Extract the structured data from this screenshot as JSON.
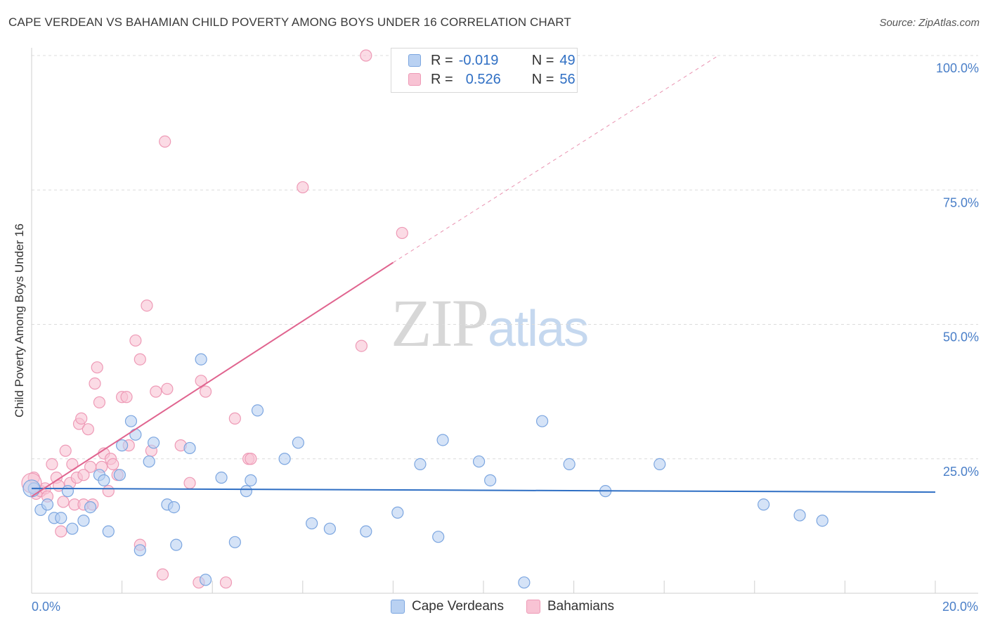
{
  "title": "CAPE VERDEAN VS BAHAMIAN CHILD POVERTY AMONG BOYS UNDER 16 CORRELATION CHART",
  "source": "Source: ZipAtlas.com",
  "watermark": {
    "zip": "ZIP",
    "atlas": "atlas"
  },
  "legend": {
    "r_label": "R =",
    "n_label": "N =",
    "rows": [
      {
        "r": "-0.019",
        "n": "49"
      },
      {
        "r": "0.526",
        "n": "56"
      }
    ]
  },
  "colors": {
    "blue_fill": "#b9d1f2",
    "blue_stroke": "#7ca6e0",
    "blue_line": "#2f6fc4",
    "pink_fill": "#f8c3d4",
    "pink_stroke": "#ee9ab6",
    "pink_line": "#e0648f",
    "axis_text": "#4a7fc8",
    "grid": "#dcdcdc"
  },
  "chart_data": {
    "type": "scatter",
    "xlabel": "",
    "ylabel": "Child Poverty Among Boys Under 16",
    "xlim": [
      0,
      20
    ],
    "ylim": [
      0,
      100
    ],
    "x_tick_labels": [
      "0.0%",
      "20.0%"
    ],
    "y_tick_labels": [
      "25.0%",
      "50.0%",
      "75.0%",
      "100.0%"
    ],
    "grid": true,
    "legend_position": "top-center",
    "series": [
      {
        "name": "Cape Verdeans",
        "points": [
          [
            0.05,
            19.5
          ],
          [
            0.2,
            15.5
          ],
          [
            0.35,
            16.5
          ],
          [
            0.5,
            14
          ],
          [
            0.65,
            14
          ],
          [
            0.8,
            19
          ],
          [
            0.9,
            12
          ],
          [
            1.15,
            13.5
          ],
          [
            1.3,
            16
          ],
          [
            1.5,
            22
          ],
          [
            1.6,
            21
          ],
          [
            1.7,
            11.5
          ],
          [
            1.95,
            22
          ],
          [
            2.0,
            27.5
          ],
          [
            2.2,
            32
          ],
          [
            2.3,
            29.5
          ],
          [
            2.4,
            8
          ],
          [
            2.6,
            24.5
          ],
          [
            2.7,
            28
          ],
          [
            3.0,
            16.5
          ],
          [
            3.15,
            16
          ],
          [
            3.2,
            9
          ],
          [
            3.5,
            27
          ],
          [
            3.75,
            43.5
          ],
          [
            3.85,
            2.5
          ],
          [
            4.2,
            21.5
          ],
          [
            4.5,
            9.5
          ],
          [
            4.75,
            19
          ],
          [
            4.85,
            21
          ],
          [
            5.0,
            34
          ],
          [
            5.6,
            25
          ],
          [
            5.9,
            28
          ],
          [
            6.2,
            13
          ],
          [
            6.6,
            12
          ],
          [
            7.4,
            11.5
          ],
          [
            8.1,
            15
          ],
          [
            8.6,
            24
          ],
          [
            9.0,
            10.5
          ],
          [
            9.1,
            28.5
          ],
          [
            9.9,
            24.5
          ],
          [
            10.15,
            21
          ],
          [
            10.9,
            2
          ],
          [
            11.3,
            32
          ],
          [
            11.9,
            24
          ],
          [
            12.7,
            19
          ],
          [
            13.9,
            24
          ],
          [
            16.2,
            16.5
          ],
          [
            17.0,
            14.5
          ],
          [
            17.5,
            13.5
          ]
        ],
        "trend": {
          "x0": 0,
          "y0": 19.5,
          "x1": 20,
          "y1": 18.8,
          "r": -0.019,
          "n": 49
        }
      },
      {
        "name": "Bahamians",
        "points": [
          [
            0.05,
            21.5
          ],
          [
            0.1,
            18.5
          ],
          [
            0.2,
            19
          ],
          [
            0.3,
            19.5
          ],
          [
            0.35,
            18
          ],
          [
            0.45,
            24
          ],
          [
            0.55,
            21.5
          ],
          [
            0.65,
            11.5
          ],
          [
            0.7,
            17
          ],
          [
            0.75,
            26.5
          ],
          [
            0.85,
            20.5
          ],
          [
            0.9,
            24
          ],
          [
            0.95,
            16.5
          ],
          [
            1.0,
            21.5
          ],
          [
            1.05,
            31.5
          ],
          [
            1.1,
            32.5
          ],
          [
            1.15,
            16.5
          ],
          [
            1.25,
            30.5
          ],
          [
            1.3,
            23.5
          ],
          [
            1.35,
            16.5
          ],
          [
            1.4,
            39
          ],
          [
            1.45,
            42
          ],
          [
            1.5,
            35.5
          ],
          [
            1.55,
            23.5
          ],
          [
            1.6,
            26
          ],
          [
            1.7,
            19
          ],
          [
            1.75,
            25
          ],
          [
            1.9,
            22
          ],
          [
            2.0,
            36.5
          ],
          [
            2.1,
            36.5
          ],
          [
            2.15,
            27.5
          ],
          [
            2.3,
            47
          ],
          [
            2.4,
            43.5
          ],
          [
            2.4,
            9
          ],
          [
            2.55,
            53.5
          ],
          [
            2.65,
            26.5
          ],
          [
            2.75,
            37.5
          ],
          [
            2.9,
            3.5
          ],
          [
            2.95,
            84
          ],
          [
            3.0,
            38
          ],
          [
            3.3,
            27.5
          ],
          [
            3.7,
            2
          ],
          [
            3.75,
            39.5
          ],
          [
            3.85,
            37.5
          ],
          [
            4.3,
            2
          ],
          [
            4.5,
            32.5
          ],
          [
            4.8,
            25
          ],
          [
            4.85,
            25
          ],
          [
            6.0,
            75.5
          ],
          [
            7.3,
            46
          ],
          [
            7.4,
            100
          ],
          [
            8.2,
            67
          ],
          [
            3.5,
            20.5
          ],
          [
            1.15,
            22
          ],
          [
            0.6,
            20
          ],
          [
            1.8,
            24
          ]
        ],
        "trend": {
          "x0": 0,
          "y0": 18,
          "x1": 8.0,
          "y1": 61.5,
          "dash_to_x": 15.2,
          "dash_to_y": 100,
          "r": 0.526,
          "n": 56
        }
      }
    ]
  }
}
